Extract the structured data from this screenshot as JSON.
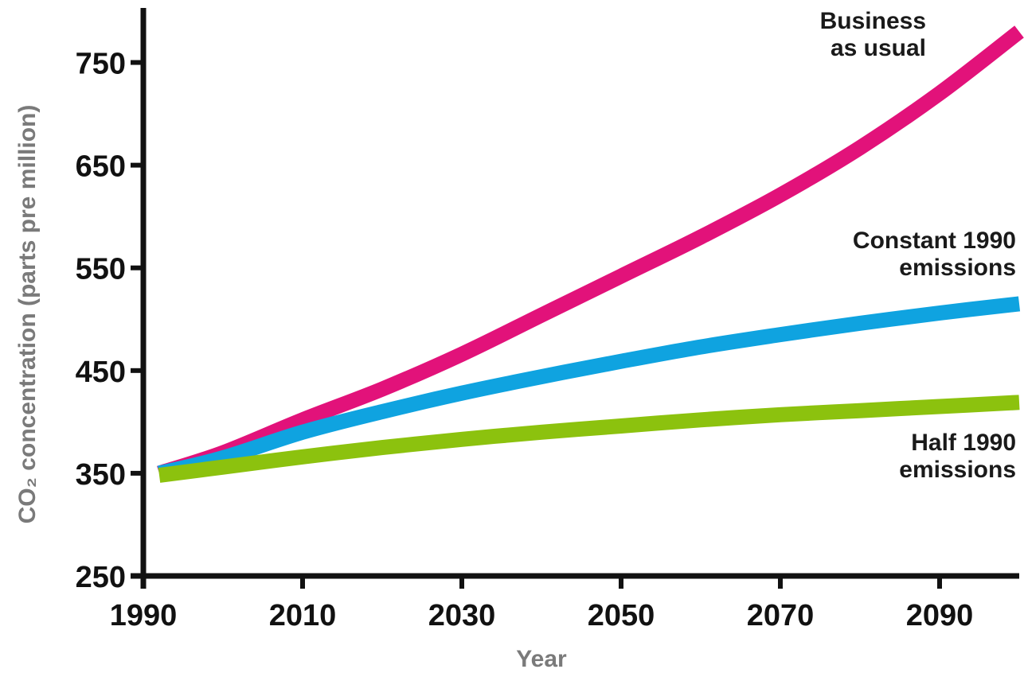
{
  "chart_data": {
    "type": "line",
    "xlabel": "Year",
    "ylabel": "CO₂ concentration (parts pre million)",
    "xlim": [
      1990,
      2100
    ],
    "ylim": [
      250,
      800
    ],
    "x_ticks": [
      1990,
      2010,
      2030,
      2050,
      2070,
      2090
    ],
    "y_ticks": [
      250,
      350,
      450,
      550,
      650,
      750
    ],
    "grid": false,
    "legend": "inline labels at right end of each line",
    "series": [
      {
        "name": "Business as usual",
        "label_lines": [
          "Business",
          "as usual"
        ],
        "color": "#e2127a",
        "x": [
          1992,
          2000,
          2010,
          2020,
          2030,
          2040,
          2050,
          2060,
          2070,
          2080,
          2090,
          2100
        ],
        "y": [
          350,
          370,
          402,
          432,
          466,
          504,
          542,
          580,
          621,
          667,
          720,
          780
        ]
      },
      {
        "name": "Constant 1990 emissions",
        "label_lines": [
          "Constant 1990",
          "emissions"
        ],
        "color": "#0fa3e0",
        "x": [
          1992,
          2000,
          2010,
          2020,
          2030,
          2040,
          2050,
          2060,
          2070,
          2080,
          2090,
          2100
        ],
        "y": [
          350,
          365,
          390,
          410,
          428,
          444,
          459,
          473,
          485,
          496,
          506,
          515
        ]
      },
      {
        "name": "Half 1990 emissions",
        "label_lines": [
          "Half 1990",
          "emissions"
        ],
        "color": "#8cc20e",
        "x": [
          1992,
          2000,
          2010,
          2020,
          2030,
          2040,
          2050,
          2060,
          2070,
          2080,
          2090,
          2100
        ],
        "y": [
          348,
          356,
          366,
          375,
          383,
          390,
          396,
          402,
          407,
          411,
          415,
          419
        ]
      }
    ]
  }
}
